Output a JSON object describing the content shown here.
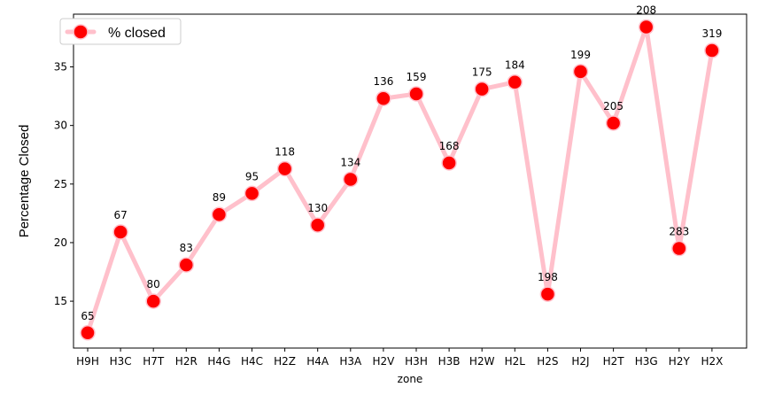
{
  "chart_data": {
    "type": "line",
    "categories": [
      "H9H",
      "H3C",
      "H7T",
      "H2R",
      "H4G",
      "H4C",
      "H2Z",
      "H4A",
      "H3A",
      "H2V",
      "H3H",
      "H3B",
      "H2W",
      "H2L",
      "H2S",
      "H2J",
      "H2T",
      "H3G",
      "H2Y",
      "H2X"
    ],
    "series": [
      {
        "name": "% closed",
        "values": [
          12.3,
          20.9,
          15.0,
          18.1,
          22.4,
          24.2,
          26.3,
          21.5,
          25.4,
          32.3,
          32.7,
          26.8,
          33.1,
          33.7,
          15.6,
          34.6,
          30.2,
          38.4,
          19.5,
          36.4
        ],
        "point_labels": [
          "65",
          "67",
          "80",
          "83",
          "89",
          "95",
          "118",
          "130",
          "134",
          "136",
          "159",
          "168",
          "175",
          "184",
          "198",
          "199",
          "205",
          "208",
          "283",
          "319"
        ]
      }
    ],
    "title": "",
    "xlabel": "zone",
    "ylabel": "Percentage Closed",
    "ylim": [
      11.0,
      39.5
    ],
    "yticks": [
      15,
      20,
      25,
      30,
      35
    ],
    "grid": false,
    "legend_position": "top-left",
    "colors": {
      "line": "#ffc0cb",
      "marker_fill": "#ff0000",
      "marker_edge": "#ffc0cb",
      "axis": "#000000"
    }
  }
}
